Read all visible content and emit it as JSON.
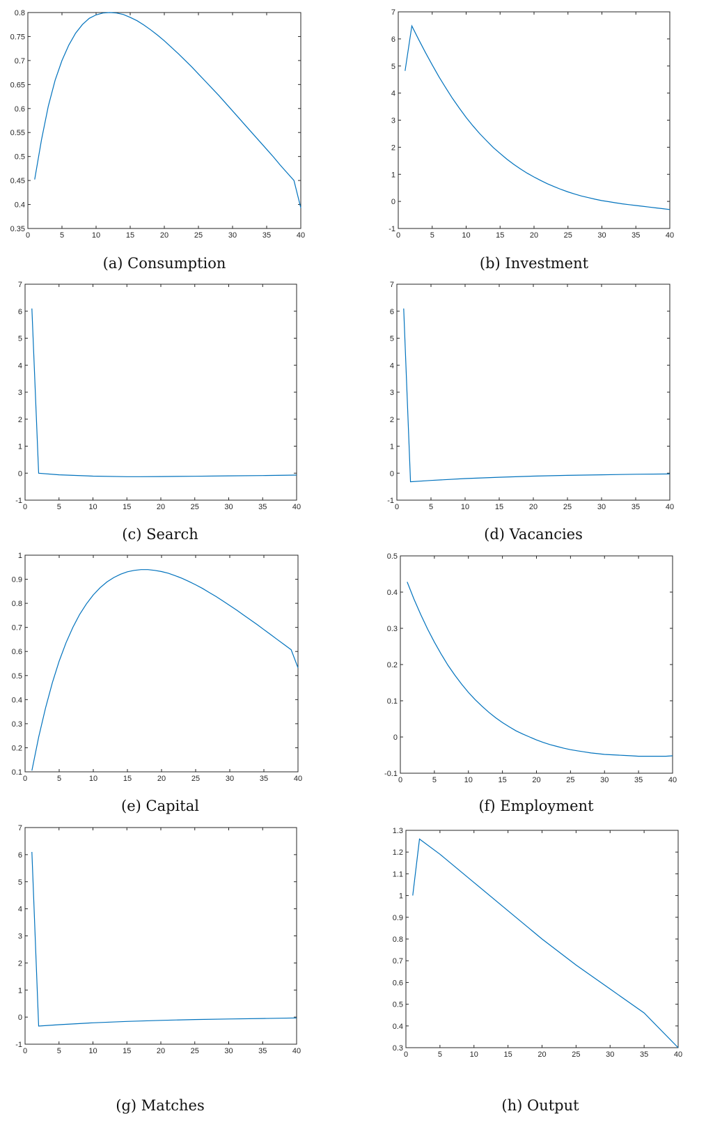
{
  "line_color": "#0072BD",
  "chart_data": [
    {
      "type": "line",
      "caption": "(a) Consumption",
      "title": "",
      "xlabel": "",
      "ylabel": "",
      "xlim": [
        0,
        40
      ],
      "ylim": [
        0.35,
        0.8
      ],
      "xticks": [
        0,
        5,
        10,
        15,
        20,
        25,
        30,
        35,
        40
      ],
      "xtick_labels": [
        "0",
        "5",
        "10",
        "15",
        "20",
        "25",
        "30",
        "35",
        "40"
      ],
      "yticks": [
        0.35,
        0.4,
        0.45,
        0.5,
        0.55,
        0.6,
        0.65,
        0.7,
        0.75,
        0.8
      ],
      "ytick_labels": [
        "0.35",
        "0.4",
        "0.45",
        "0.5",
        "0.55",
        "0.6",
        "0.65",
        "0.7",
        "0.75",
        "0.8"
      ],
      "grid": false,
      "series": [
        {
          "x": [
            1,
            2,
            3,
            4,
            5,
            6,
            7,
            8,
            9,
            10,
            11,
            12,
            13,
            14,
            15,
            16,
            17,
            18,
            19,
            20,
            21,
            22,
            23,
            24,
            25,
            26,
            27,
            28,
            29,
            30,
            31,
            32,
            33,
            34,
            35,
            36,
            37,
            38,
            39,
            40
          ],
          "y": [
            0.452,
            0.535,
            0.605,
            0.659,
            0.7,
            0.732,
            0.757,
            0.775,
            0.788,
            0.795,
            0.799,
            0.8,
            0.799,
            0.796,
            0.79,
            0.783,
            0.774,
            0.764,
            0.753,
            0.741,
            0.728,
            0.715,
            0.701,
            0.687,
            0.672,
            0.657,
            0.642,
            0.627,
            0.611,
            0.595,
            0.579,
            0.563,
            0.547,
            0.531,
            0.515,
            0.499,
            0.482,
            0.466,
            0.45,
            0.393
          ]
        }
      ]
    },
    {
      "type": "line",
      "caption": "(b) Investment",
      "title": "",
      "xlabel": "",
      "ylabel": "",
      "xlim": [
        0,
        40
      ],
      "ylim": [
        -1,
        7
      ],
      "xticks": [
        0,
        5,
        10,
        15,
        20,
        25,
        30,
        35,
        40
      ],
      "xtick_labels": [
        "0",
        "5",
        "10",
        "15",
        "20",
        "25",
        "30",
        "35",
        "40"
      ],
      "yticks": [
        -1,
        0,
        1,
        2,
        3,
        4,
        5,
        6,
        7
      ],
      "ytick_labels": [
        "-1",
        "0",
        "1",
        "2",
        "3",
        "4",
        "5",
        "6",
        "7"
      ],
      "grid": false,
      "series": [
        {
          "x": [
            1,
            2,
            3,
            4,
            5,
            6,
            7,
            8,
            9,
            10,
            11,
            12,
            13,
            14,
            15,
            16,
            17,
            18,
            19,
            20,
            21,
            22,
            23,
            24,
            25,
            26,
            27,
            28,
            29,
            30,
            31,
            32,
            33,
            34,
            35,
            36,
            37,
            38,
            39,
            40
          ],
          "y": [
            4.82,
            6.48,
            5.98,
            5.5,
            5.04,
            4.6,
            4.19,
            3.8,
            3.44,
            3.1,
            2.79,
            2.5,
            2.24,
            1.99,
            1.77,
            1.56,
            1.37,
            1.2,
            1.04,
            0.9,
            0.77,
            0.65,
            0.54,
            0.44,
            0.35,
            0.27,
            0.2,
            0.14,
            0.08,
            0.03,
            -0.01,
            -0.05,
            -0.09,
            -0.12,
            -0.15,
            -0.18,
            -0.21,
            -0.24,
            -0.27,
            -0.3
          ]
        }
      ]
    },
    {
      "type": "line",
      "caption": "(c) Search",
      "title": "",
      "xlabel": "",
      "ylabel": "",
      "xlim": [
        0,
        40
      ],
      "ylim": [
        -1,
        7
      ],
      "xticks": [
        0,
        5,
        10,
        15,
        20,
        25,
        30,
        35,
        40
      ],
      "xtick_labels": [
        "0",
        "5",
        "10",
        "15",
        "20",
        "25",
        "30",
        "35",
        "40"
      ],
      "yticks": [
        -1,
        0,
        1,
        2,
        3,
        4,
        5,
        6,
        7
      ],
      "ytick_labels": [
        "-1",
        "0",
        "1",
        "2",
        "3",
        "4",
        "5",
        "6",
        "7"
      ],
      "grid": false,
      "series": [
        {
          "x": [
            1,
            2,
            5,
            10,
            15,
            17,
            20,
            25,
            30,
            35,
            40
          ],
          "y": [
            6.1,
            0.0,
            -0.06,
            -0.11,
            -0.13,
            -0.13,
            -0.125,
            -0.115,
            -0.1,
            -0.09,
            -0.07
          ]
        }
      ]
    },
    {
      "type": "line",
      "caption": "(d) Vacancies",
      "title": "",
      "xlabel": "",
      "ylabel": "",
      "xlim": [
        0,
        40
      ],
      "ylim": [
        -1,
        7
      ],
      "xticks": [
        0,
        5,
        10,
        15,
        20,
        25,
        30,
        35,
        40
      ],
      "xtick_labels": [
        "0",
        "5",
        "10",
        "15",
        "20",
        "25",
        "30",
        "35",
        "40"
      ],
      "yticks": [
        -1,
        0,
        1,
        2,
        3,
        4,
        5,
        6,
        7
      ],
      "ytick_labels": [
        "-1",
        "0",
        "1",
        "2",
        "3",
        "4",
        "5",
        "6",
        "7"
      ],
      "grid": false,
      "series": [
        {
          "x": [
            1,
            2,
            5,
            10,
            15,
            20,
            25,
            30,
            35,
            40
          ],
          "y": [
            6.1,
            -0.32,
            -0.27,
            -0.2,
            -0.15,
            -0.11,
            -0.08,
            -0.06,
            -0.04,
            -0.03
          ]
        }
      ]
    },
    {
      "type": "line",
      "caption": "(e) Capital",
      "title": "",
      "xlabel": "",
      "ylabel": "",
      "xlim": [
        0,
        40
      ],
      "ylim": [
        0.1,
        1
      ],
      "xticks": [
        0,
        5,
        10,
        15,
        20,
        25,
        30,
        35,
        40
      ],
      "xtick_labels": [
        "0",
        "5",
        "10",
        "15",
        "20",
        "25",
        "30",
        "35",
        "40"
      ],
      "yticks": [
        0.1,
        0.2,
        0.3,
        0.4,
        0.5,
        0.6,
        0.7,
        0.8,
        0.9,
        1
      ],
      "ytick_labels": [
        "0.1",
        "0.2",
        "0.3",
        "0.4",
        "0.5",
        "0.6",
        "0.7",
        "0.8",
        "0.9",
        "1"
      ],
      "grid": false,
      "series": [
        {
          "x": [
            1,
            2,
            3,
            4,
            5,
            6,
            7,
            8,
            9,
            10,
            11,
            12,
            13,
            14,
            15,
            16,
            17,
            18,
            19,
            20,
            21,
            22,
            23,
            24,
            25,
            26,
            27,
            28,
            29,
            30,
            31,
            32,
            33,
            34,
            35,
            36,
            37,
            38,
            39,
            40
          ],
          "y": [
            0.105,
            0.245,
            0.365,
            0.47,
            0.56,
            0.636,
            0.7,
            0.754,
            0.798,
            0.835,
            0.865,
            0.889,
            0.907,
            0.921,
            0.931,
            0.937,
            0.94,
            0.94,
            0.937,
            0.932,
            0.925,
            0.915,
            0.904,
            0.891,
            0.877,
            0.862,
            0.845,
            0.828,
            0.81,
            0.791,
            0.772,
            0.752,
            0.732,
            0.712,
            0.691,
            0.67,
            0.649,
            0.628,
            0.607,
            0.532
          ]
        }
      ]
    },
    {
      "type": "line",
      "caption": "(f) Employment",
      "title": "",
      "xlabel": "",
      "ylabel": "",
      "xlim": [
        0,
        40
      ],
      "ylim": [
        -0.1,
        0.5
      ],
      "xticks": [
        0,
        5,
        10,
        15,
        20,
        25,
        30,
        35,
        40
      ],
      "xtick_labels": [
        "0",
        "5",
        "10",
        "15",
        "20",
        "25",
        "30",
        "35",
        "40"
      ],
      "yticks": [
        -0.1,
        0,
        0.1,
        0.2,
        0.3,
        0.4,
        0.5
      ],
      "ytick_labels": [
        "-0.1",
        "0",
        "0.1",
        "0.2",
        "0.3",
        "0.4",
        "0.5"
      ],
      "grid": false,
      "series": [
        {
          "x": [
            1,
            2,
            3,
            4,
            5,
            6,
            7,
            8,
            9,
            10,
            11,
            12,
            13,
            14,
            15,
            16,
            17,
            18,
            19,
            20,
            21,
            22,
            23,
            24,
            25,
            26,
            27,
            28,
            29,
            30,
            31,
            32,
            33,
            34,
            35,
            36,
            37,
            38,
            39,
            40
          ],
          "y": [
            0.428,
            0.381,
            0.338,
            0.298,
            0.262,
            0.229,
            0.198,
            0.171,
            0.146,
            0.123,
            0.103,
            0.085,
            0.068,
            0.053,
            0.04,
            0.028,
            0.017,
            0.008,
            0.0,
            -0.008,
            -0.015,
            -0.021,
            -0.026,
            -0.031,
            -0.035,
            -0.038,
            -0.041,
            -0.044,
            -0.046,
            -0.048,
            -0.049,
            -0.05,
            -0.051,
            -0.052,
            -0.053,
            -0.053,
            -0.053,
            -0.053,
            -0.053,
            -0.052
          ]
        }
      ]
    },
    {
      "type": "line",
      "caption": "(g) Matches",
      "title": "",
      "xlabel": "",
      "ylabel": "",
      "xlim": [
        0,
        40
      ],
      "ylim": [
        -1,
        7
      ],
      "xticks": [
        0,
        5,
        10,
        15,
        20,
        25,
        30,
        35,
        40
      ],
      "xtick_labels": [
        "0",
        "5",
        "10",
        "15",
        "20",
        "25",
        "30",
        "35",
        "40"
      ],
      "yticks": [
        -1,
        0,
        1,
        2,
        3,
        4,
        5,
        6,
        7
      ],
      "ytick_labels": [
        "-1",
        "0",
        "1",
        "2",
        "3",
        "4",
        "5",
        "6",
        "7"
      ],
      "grid": false,
      "series": [
        {
          "x": [
            1,
            2,
            5,
            10,
            15,
            20,
            25,
            30,
            35,
            40
          ],
          "y": [
            6.1,
            -0.33,
            -0.28,
            -0.21,
            -0.16,
            -0.12,
            -0.09,
            -0.07,
            -0.05,
            -0.03
          ]
        }
      ]
    },
    {
      "type": "line",
      "caption": "(h) Output",
      "title": "",
      "xlabel": "",
      "ylabel": "",
      "xlim": [
        0,
        40
      ],
      "ylim": [
        0.3,
        1.3
      ],
      "xticks": [
        0,
        5,
        10,
        15,
        20,
        25,
        30,
        35,
        40
      ],
      "xtick_labels": [
        "0",
        "5",
        "10",
        "15",
        "20",
        "25",
        "30",
        "35",
        "40"
      ],
      "yticks": [
        0.3,
        0.4,
        0.5,
        0.6,
        0.7,
        0.8,
        0.9,
        1,
        1.1,
        1.2,
        1.3
      ],
      "ytick_labels": [
        "0.3",
        "0.4",
        "0.5",
        "0.6",
        "0.7",
        "0.8",
        "0.9",
        "1",
        "1.1",
        "1.2",
        "1.3"
      ],
      "grid": false,
      "series": [
        {
          "x": [
            1,
            2,
            5,
            10,
            15,
            20,
            25,
            30,
            35,
            40
          ],
          "y": [
            1.0,
            1.26,
            1.19,
            1.06,
            0.93,
            0.8,
            0.68,
            0.57,
            0.46,
            0.3
          ]
        }
      ]
    }
  ]
}
